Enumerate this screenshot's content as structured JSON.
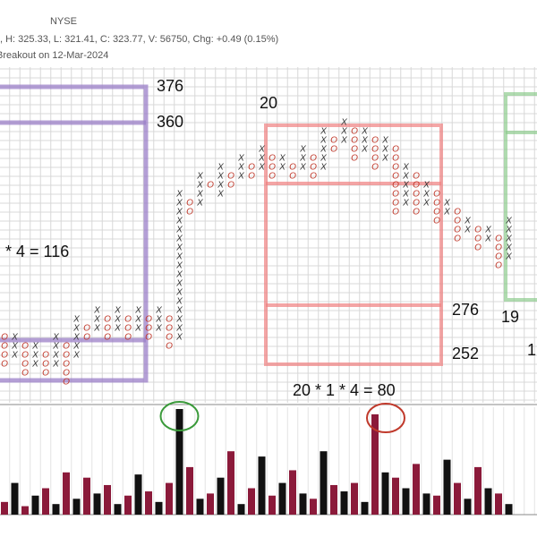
{
  "chart_data": {
    "type": "point-and-figure",
    "header": {
      "exchange": "NYSE",
      "quote": ", H: 325.33, L: 321.41, C: 323.77, V: 56750, Chg: +0.49 (0.15%)",
      "signal": "Breakout on 12-Mar-2024"
    },
    "box_size": 4,
    "x_color": "#333333",
    "o_color": "#c0392b",
    "volume_up_color": "#111111",
    "volume_down_color": "#8b1a3a",
    "columns": [
      {
        "mark": "O",
        "low": 252,
        "high": 264
      },
      {
        "mark": "X",
        "low": 256,
        "high": 264
      },
      {
        "mark": "O",
        "low": 248,
        "high": 260
      },
      {
        "mark": "X",
        "low": 252,
        "high": 260
      },
      {
        "mark": "O",
        "low": 248,
        "high": 256
      },
      {
        "mark": "X",
        "low": 252,
        "high": 264
      },
      {
        "mark": "O",
        "low": 244,
        "high": 260
      },
      {
        "mark": "X",
        "low": 256,
        "high": 272
      },
      {
        "mark": "O",
        "low": 264,
        "high": 268
      },
      {
        "mark": "X",
        "low": 268,
        "high": 276
      },
      {
        "mark": "O",
        "low": 264,
        "high": 272
      },
      {
        "mark": "X",
        "low": 268,
        "high": 276
      },
      {
        "mark": "O",
        "low": 264,
        "high": 272
      },
      {
        "mark": "X",
        "low": 268,
        "high": 276
      },
      {
        "mark": "O",
        "low": 264,
        "high": 272
      },
      {
        "mark": "X",
        "low": 268,
        "high": 276
      },
      {
        "mark": "O",
        "low": 260,
        "high": 272
      },
      {
        "mark": "X",
        "low": 264,
        "high": 328
      },
      {
        "mark": "O",
        "low": 320,
        "high": 324
      },
      {
        "mark": "X",
        "low": 324,
        "high": 336
      },
      {
        "mark": "O",
        "low": 332,
        "high": 332
      },
      {
        "mark": "X",
        "low": 328,
        "high": 340
      },
      {
        "mark": "O",
        "low": 332,
        "high": 336
      },
      {
        "mark": "X",
        "low": 336,
        "high": 344
      },
      {
        "mark": "O",
        "low": 336,
        "high": 340
      },
      {
        "mark": "X",
        "low": 340,
        "high": 348
      },
      {
        "mark": "O",
        "low": 336,
        "high": 344
      },
      {
        "mark": "X",
        "low": 340,
        "high": 344
      },
      {
        "mark": "O",
        "low": 336,
        "high": 340
      },
      {
        "mark": "X",
        "low": 340,
        "high": 348
      },
      {
        "mark": "O",
        "low": 336,
        "high": 344
      },
      {
        "mark": "X",
        "low": 340,
        "high": 356
      },
      {
        "mark": "O",
        "low": 348,
        "high": 352
      },
      {
        "mark": "X",
        "low": 352,
        "high": 360
      },
      {
        "mark": "O",
        "low": 344,
        "high": 356
      },
      {
        "mark": "X",
        "low": 348,
        "high": 356
      },
      {
        "mark": "O",
        "low": 340,
        "high": 352
      },
      {
        "mark": "X",
        "low": 344,
        "high": 352
      },
      {
        "mark": "O",
        "low": 320,
        "high": 348
      },
      {
        "mark": "X",
        "low": 324,
        "high": 340
      },
      {
        "mark": "O",
        "low": 320,
        "high": 336
      },
      {
        "mark": "X",
        "low": 324,
        "high": 332
      },
      {
        "mark": "O",
        "low": 316,
        "high": 328
      },
      {
        "mark": "X",
        "low": 320,
        "high": 324
      },
      {
        "mark": "O",
        "low": 308,
        "high": 320
      },
      {
        "mark": "X",
        "low": 312,
        "high": 316
      },
      {
        "mark": "O",
        "low": 304,
        "high": 312
      },
      {
        "mark": "X",
        "low": 308,
        "high": 312
      },
      {
        "mark": "O",
        "low": 296,
        "high": 308
      },
      {
        "mark": "X",
        "low": 300,
        "high": 316
      }
    ],
    "volume": [
      12,
      30,
      8,
      18,
      25,
      10,
      40,
      15,
      35,
      20,
      28,
      10,
      18,
      38,
      22,
      12,
      30,
      100,
      45,
      15,
      20,
      35,
      60,
      10,
      25,
      55,
      18,
      30,
      42,
      20,
      15,
      60,
      28,
      22,
      30,
      12,
      95,
      40,
      35,
      25,
      48,
      20,
      18,
      52,
      30,
      15,
      45,
      25,
      20,
      10
    ],
    "targets": [
      {
        "color": "#9b7fc8",
        "top": 376,
        "top_label": 376,
        "line": 360,
        "line_label": 360,
        "count": "* 4 = 116"
      },
      {
        "color": "#f08080",
        "count_top": "20",
        "line": 276,
        "line_label": 276,
        "bottom": 252,
        "bottom_label": 252,
        "count": "20 * 1 * 4 = 80"
      },
      {
        "color": "#8fcc8f",
        "count_top": "19",
        "side_label": "1"
      }
    ]
  }
}
